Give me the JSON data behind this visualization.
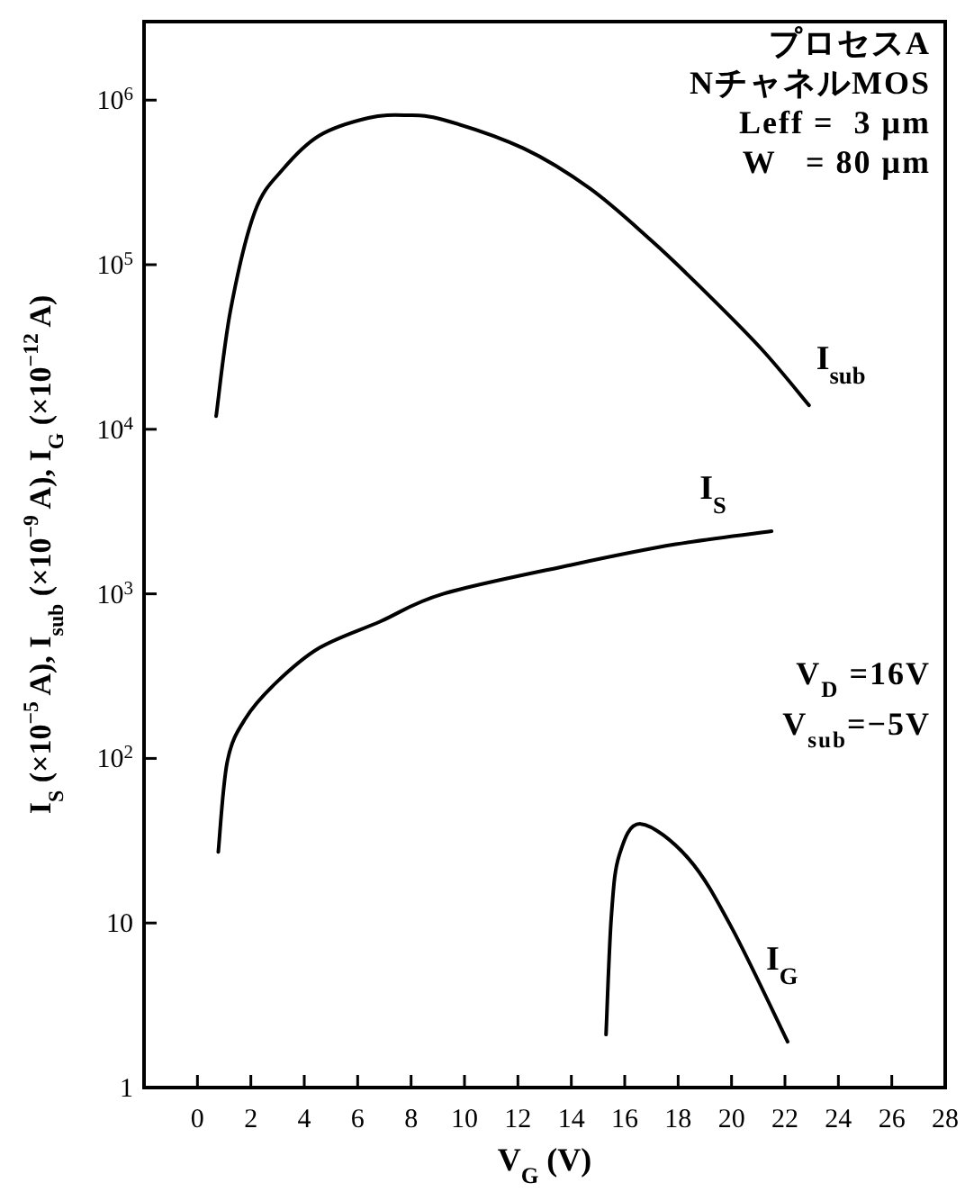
{
  "chart_data": {
    "type": "line",
    "xlabel": "V$_{G}$ (V)",
    "ylabel": "I$_{S}$ (×10$^{−5}$ A), I$_{sub}$ (×10$^{−9}$ A), I$_{G}$ (×10$^{−12}$ A)",
    "log": "y",
    "grid": false,
    "marker": "none",
    "line_style": "solid",
    "xlim": [
      -2,
      28
    ],
    "xticks": [
      0,
      2,
      4,
      6,
      8,
      10,
      12,
      14,
      16,
      18,
      20,
      22,
      24,
      26,
      28
    ],
    "ylim": [
      1,
      3000000
    ],
    "yticks": [
      1,
      10,
      {
        "value": 100,
        "label": "10$^{2}$"
      },
      {
        "value": 1000,
        "label": "10$^{3}$"
      },
      {
        "value": 10000,
        "label": "10$^{4}$"
      },
      {
        "value": 100000,
        "label": "10$^{5}$"
      },
      {
        "value": 1000000,
        "label": "10$^{6}$"
      }
    ],
    "series": [
      {
        "name": "I$_{sub}$",
        "color": "#000000",
        "x": [
          0.7,
          1.24,
          2.15,
          3.2,
          4.57,
          6.4,
          7.8,
          9.2,
          12.2,
          14.7,
          17.0,
          18.8,
          21.1,
          22.9
        ],
        "values": [
          12000,
          53000,
          210000,
          380000,
          610000,
          780000,
          810000,
          760000,
          510000,
          290000,
          140000,
          74000,
          31000,
          14000
        ]
      },
      {
        "name": "I$_{S}$",
        "color": "#000000",
        "x": [
          0.78,
          1.12,
          1.8,
          2.96,
          4.57,
          6.85,
          9.2,
          14.0,
          17.9,
          21.5
        ],
        "values": [
          27,
          96,
          175,
          290,
          470,
          680,
          1000,
          1500,
          2000,
          2400
        ]
      },
      {
        "name": "I$_{G}$",
        "color": "#000000",
        "x": [
          15.3,
          15.5,
          15.8,
          16.6,
          18.4,
          20.0,
          22.1
        ],
        "values": [
          2.1,
          11,
          26,
          40,
          24.5,
          9.4,
          1.9
        ]
      }
    ],
    "annotations": [
      "プロセスA",
      "NチャネルMOS",
      "Leff =  3 μm",
      "W   = 80 μm",
      "V$_{D}$ =16V",
      "V$_{sub}$=−5V"
    ]
  }
}
